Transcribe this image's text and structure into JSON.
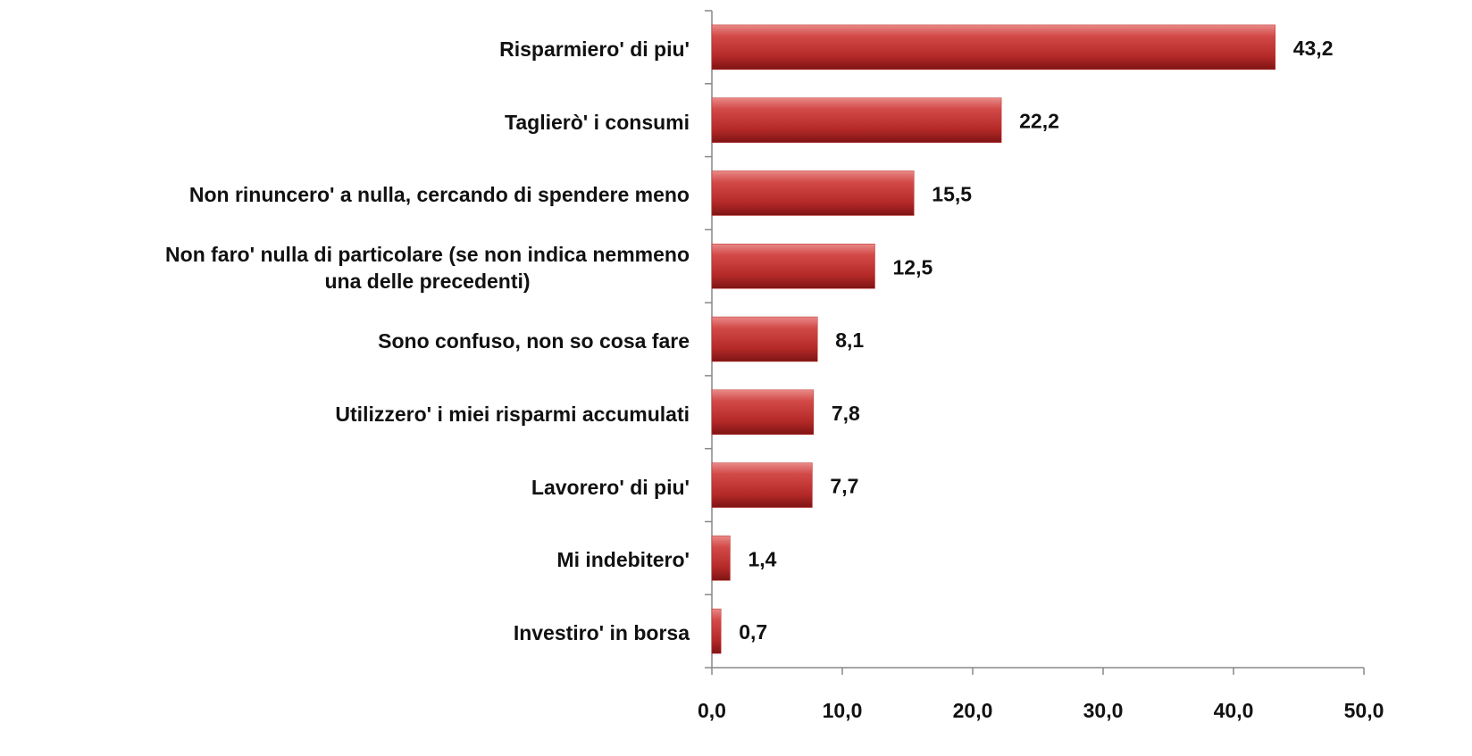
{
  "chart_data": {
    "type": "bar",
    "orientation": "horizontal",
    "categories": [
      "Risparmiero' di piu'",
      "Taglierò' i consumi",
      "Non rinuncero' a nulla, cercando di spendere meno",
      "Non faro' nulla di particolare (se non indica nemmeno\nuna delle precedenti)",
      "Sono confuso, non so cosa fare",
      "Utilizzero' i miei risparmi accumulati",
      "Lavorero' di piu'",
      "Mi indebitero'",
      "Investiro' in borsa"
    ],
    "values": [
      43.2,
      22.2,
      15.5,
      12.5,
      8.1,
      7.8,
      7.7,
      1.4,
      0.7
    ],
    "value_labels": [
      "43,2",
      "22,2",
      "15,5",
      "12,5",
      "8,1",
      "7,8",
      "7,7",
      "1,4",
      "0,7"
    ],
    "color": "#c0302f",
    "xlim": [
      0,
      50
    ],
    "xticks": [
      {
        "value": 0,
        "label": "0,0"
      },
      {
        "value": 10,
        "label": "10,0"
      },
      {
        "value": 20,
        "label": "20,0"
      },
      {
        "value": 30,
        "label": "30,0"
      },
      {
        "value": 40,
        "label": "40,0"
      },
      {
        "value": 50,
        "label": "50,0"
      }
    ]
  }
}
